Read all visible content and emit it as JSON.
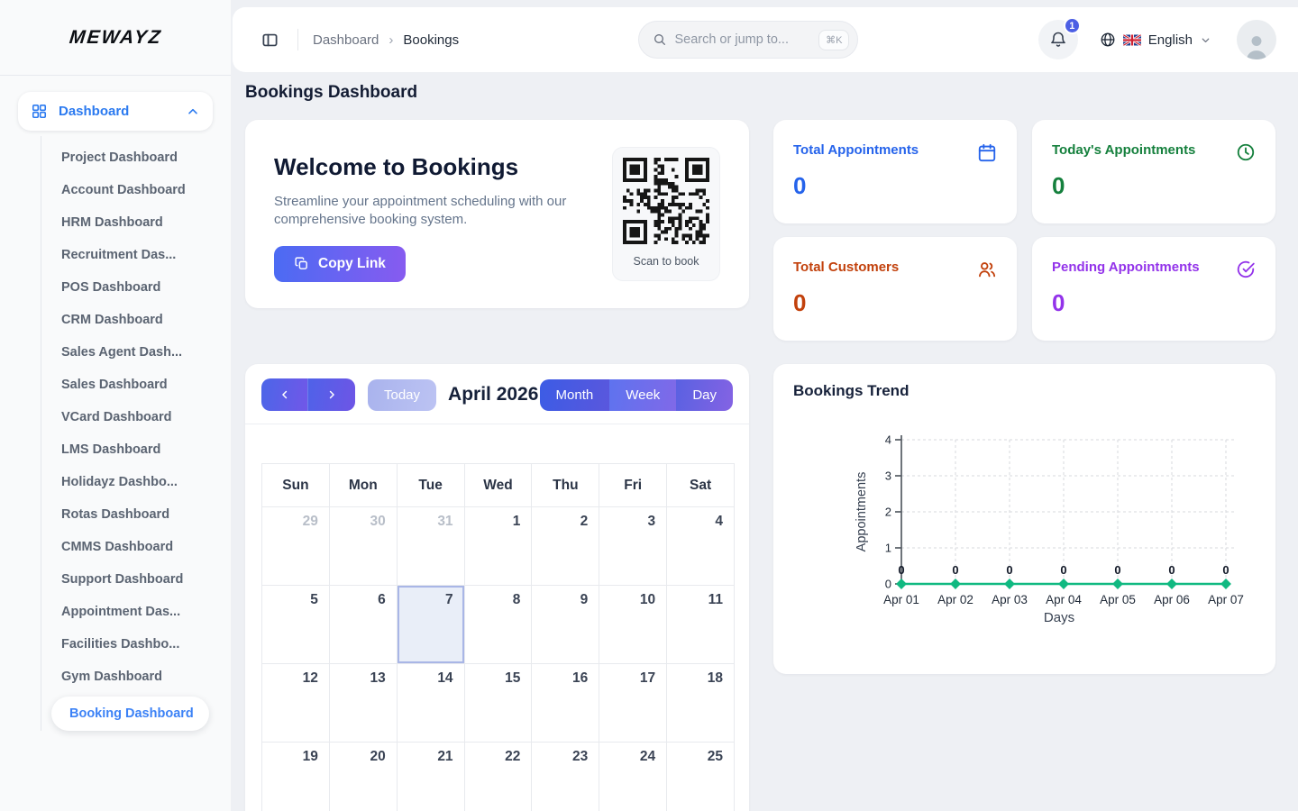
{
  "app": {
    "logo": "MEWAYZ"
  },
  "header": {
    "breadcrumb": [
      "Dashboard",
      "Bookings"
    ],
    "search": {
      "placeholder": "Search or jump to...",
      "shortcut": "⌘K"
    },
    "notifications_count": "1",
    "language": "English"
  },
  "sidebar": {
    "parent": "Dashboard",
    "active_item": "Booking Dashboard",
    "items": [
      "Project Dashboard",
      "Account Dashboard",
      "HRM Dashboard",
      "Recruitment Das...",
      "POS Dashboard",
      "CRM Dashboard",
      "Sales Agent Dash...",
      "Sales Dashboard",
      "VCard Dashboard",
      "LMS Dashboard",
      "Holidayz Dashbo...",
      "Rotas Dashboard",
      "CMMS Dashboard",
      "Support Dashboard",
      "Appointment Das...",
      "Facilities Dashbo...",
      "Gym Dashboard",
      "Booking Dashboard"
    ]
  },
  "page": {
    "title": "Bookings Dashboard"
  },
  "welcome": {
    "title": "Welcome to Bookings",
    "subtitle": "Streamline your appointment scheduling with our comprehensive booking system.",
    "button": "Copy Link",
    "qr_caption": "Scan to book"
  },
  "stats": [
    {
      "label": "Total Appointments",
      "value": "0",
      "color": "#2563eb",
      "icon": "calendar-icon"
    },
    {
      "label": "Today's Appointments",
      "value": "0",
      "color": "#15803d",
      "icon": "clock-icon"
    },
    {
      "label": "Total Customers",
      "value": "0",
      "color": "#c2410c",
      "icon": "users-icon"
    },
    {
      "label": "Pending Appointments",
      "value": "0",
      "color": "#9333ea",
      "icon": "check-circle-icon"
    }
  ],
  "calendar": {
    "today_label": "Today",
    "month_title": "April 2026",
    "views": [
      "Month",
      "Week",
      "Day"
    ],
    "weekdays": [
      "Sun",
      "Mon",
      "Tue",
      "Wed",
      "Thu",
      "Fri",
      "Sat"
    ],
    "weeks": [
      [
        {
          "d": "29",
          "muted": true
        },
        {
          "d": "30",
          "muted": true
        },
        {
          "d": "31",
          "muted": true
        },
        {
          "d": "1"
        },
        {
          "d": "2"
        },
        {
          "d": "3"
        },
        {
          "d": "4"
        }
      ],
      [
        {
          "d": "5"
        },
        {
          "d": "6"
        },
        {
          "d": "7",
          "today": true
        },
        {
          "d": "8"
        },
        {
          "d": "9"
        },
        {
          "d": "10"
        },
        {
          "d": "11"
        }
      ],
      [
        {
          "d": "12"
        },
        {
          "d": "13"
        },
        {
          "d": "14"
        },
        {
          "d": "15"
        },
        {
          "d": "16"
        },
        {
          "d": "17"
        },
        {
          "d": "18"
        }
      ],
      [
        {
          "d": "19"
        },
        {
          "d": "20"
        },
        {
          "d": "21"
        },
        {
          "d": "22"
        },
        {
          "d": "23"
        },
        {
          "d": "24"
        },
        {
          "d": "25"
        }
      ]
    ]
  },
  "chart_data": {
    "type": "line",
    "title": "Bookings Trend",
    "x": [
      "Apr 01",
      "Apr 02",
      "Apr 03",
      "Apr 04",
      "Apr 05",
      "Apr 06",
      "Apr 07"
    ],
    "series": [
      {
        "name": "Appointments",
        "values": [
          0,
          0,
          0,
          0,
          0,
          0,
          0
        ]
      }
    ],
    "xlabel": "Days",
    "ylabel": "Appointments",
    "ylim": [
      0,
      4
    ],
    "yticks": [
      0,
      1,
      2,
      3,
      4
    ],
    "grid": true,
    "legend": false,
    "line_color": "#10b981",
    "point_labels": true
  }
}
